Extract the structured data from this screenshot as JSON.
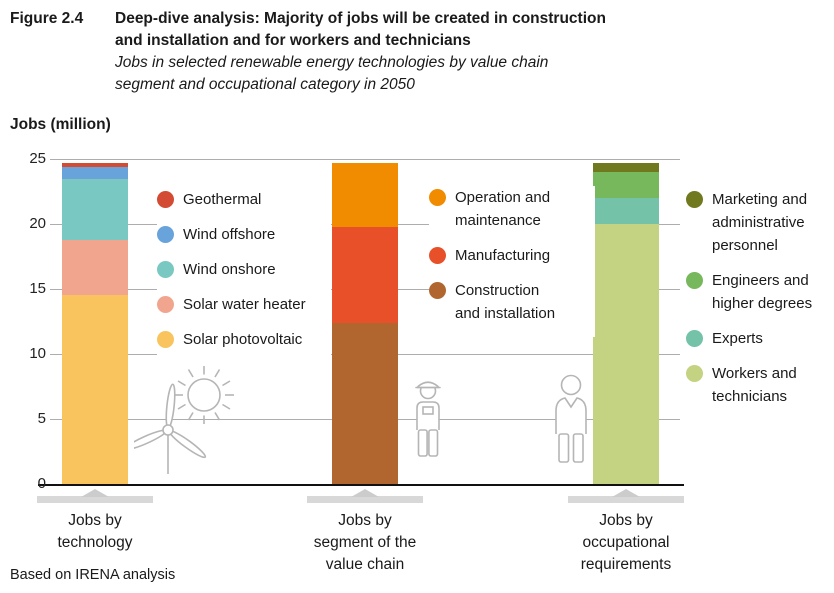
{
  "figure_label": "Figure 2.4",
  "title": {
    "lines": [
      "Deep-dive analysis: Majority of jobs will be created in construction",
      "and installation and for workers and technicians"
    ]
  },
  "subtitle": {
    "lines": [
      "Jobs in selected renewable energy technologies by value chain",
      "segment and occupational category in 2050"
    ]
  },
  "y_axis": {
    "label": "Jobs (million)",
    "ticks": [
      "25",
      "20",
      "15",
      "10",
      "5",
      "0"
    ]
  },
  "footer": "Based on IRENA analysis",
  "colors": {
    "solar_pv": "#f9c45e",
    "solar_water_heater": "#f2a58e",
    "wind_onshore": "#7ac8c2",
    "wind_offshore": "#69a3dc",
    "geothermal": "#d34b33",
    "operation_maintenance": "#f18c00",
    "manufacturing": "#e8502a",
    "construction_installation": "#b0662e",
    "marketing_admin": "#71791f",
    "engineers": "#77b85c",
    "experts": "#74c2a8",
    "workers_technicians": "#c4d381",
    "gridline": "#adadad",
    "pedestal": "#d8d8d8",
    "icon_stroke": "#b5b5b5"
  },
  "chart_data": {
    "type": "bar",
    "stacked": true,
    "title": "Jobs in selected renewable energy technologies by value chain segment and occupational category in 2050",
    "ylabel": "Jobs (million)",
    "ylim": [
      0,
      25
    ],
    "grid": true,
    "unit": "million jobs",
    "bars": [
      {
        "category_lines": [
          "Jobs by",
          "technology"
        ],
        "total": 24.7,
        "segments": [
          {
            "label": "Solar photovoltaic",
            "value": 14.5,
            "color": "#f9c45e"
          },
          {
            "label": "Solar water heater",
            "value": 4.3,
            "color": "#f2a58e"
          },
          {
            "label": "Wind onshore",
            "value": 4.7,
            "color": "#7ac8c2"
          },
          {
            "label": "Wind offshore",
            "value": 0.9,
            "color": "#69a3dc"
          },
          {
            "label": "Geothermal",
            "value": 0.3,
            "color": "#d34b33"
          }
        ]
      },
      {
        "category_lines": [
          "Jobs by",
          "segment of the",
          "value chain"
        ],
        "total": 24.7,
        "segments": [
          {
            "label": "Construction and installation",
            "value": 12.4,
            "color": "#b0662e"
          },
          {
            "label": "Manufacturing",
            "value": 7.4,
            "color": "#e8502a"
          },
          {
            "label": "Operation and maintenance",
            "value": 4.9,
            "color": "#f18c00"
          }
        ]
      },
      {
        "category_lines": [
          "Jobs by",
          "occupational",
          "requirements"
        ],
        "total": 24.7,
        "segments": [
          {
            "label": "Workers and technicians",
            "value": 20.0,
            "color": "#c4d381"
          },
          {
            "label": "Experts",
            "value": 2.0,
            "color": "#74c2a8"
          },
          {
            "label": "Engineers and higher degrees",
            "value": 2.0,
            "color": "#77b85c"
          },
          {
            "label": "Marketing and administrative personnel",
            "value": 0.7,
            "color": "#71791f"
          }
        ]
      }
    ]
  },
  "legends": [
    {
      "items": [
        {
          "color": "#d34b33",
          "lines": [
            "Geothermal"
          ]
        },
        {
          "color": "#69a3dc",
          "lines": [
            "Wind offshore"
          ]
        },
        {
          "color": "#7ac8c2",
          "lines": [
            "Wind onshore"
          ]
        },
        {
          "color": "#f2a58e",
          "lines": [
            "Solar water heater"
          ]
        },
        {
          "color": "#f9c45e",
          "lines": [
            "Solar photovoltaic"
          ]
        }
      ]
    },
    {
      "items": [
        {
          "color": "#f18c00",
          "lines": [
            "Operation and",
            "maintenance"
          ]
        },
        {
          "color": "#e8502a",
          "lines": [
            "Manufacturing"
          ]
        },
        {
          "color": "#b0662e",
          "lines": [
            "Construction",
            "and installation"
          ]
        }
      ]
    },
    {
      "items": [
        {
          "color": "#71791f",
          "lines": [
            "Marketing and",
            "administrative",
            "personnel"
          ]
        },
        {
          "color": "#77b85c",
          "lines": [
            "Engineers and",
            "higher degrees"
          ]
        },
        {
          "color": "#74c2a8",
          "lines": [
            "Experts"
          ]
        },
        {
          "color": "#c4d381",
          "lines": [
            "Workers and",
            "technicians"
          ]
        }
      ]
    }
  ]
}
